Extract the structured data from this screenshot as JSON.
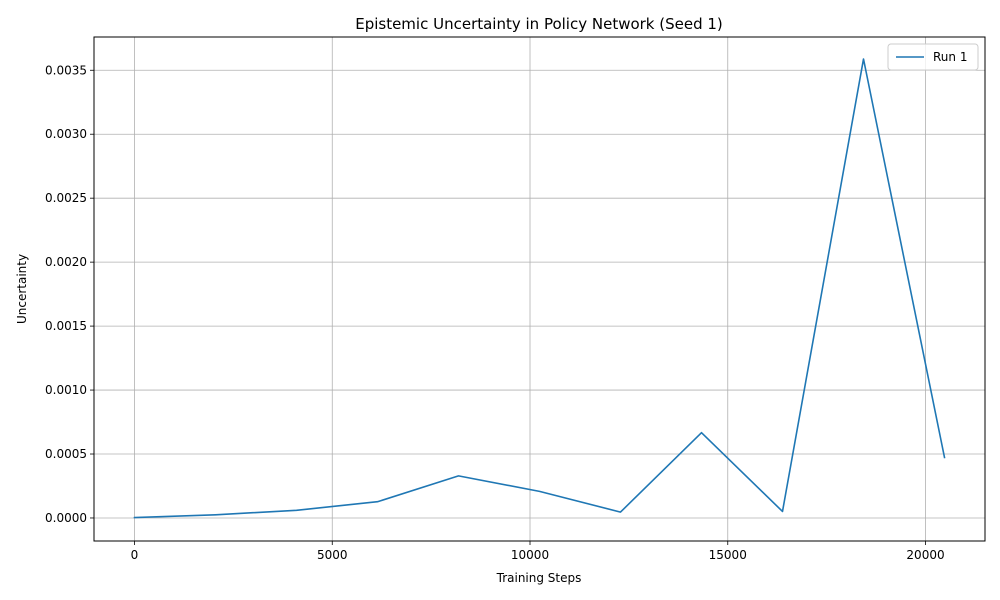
{
  "chart_data": {
    "type": "line",
    "title": "Epistemic Uncertainty in Policy Network (Seed 1)",
    "xlabel": "Training Steps",
    "ylabel": "Uncertainty",
    "xlim": [
      -1024,
      21504
    ],
    "ylim": [
      -0.00018,
      0.00376
    ],
    "xticks": [
      0,
      5000,
      10000,
      15000,
      20000
    ],
    "xtick_labels": [
      "0",
      "5000",
      "10000",
      "15000",
      "20000"
    ],
    "yticks": [
      0.0,
      0.0005,
      0.001,
      0.0015,
      0.002,
      0.0025,
      0.003,
      0.0035
    ],
    "ytick_labels": [
      "0.0000",
      "0.0005",
      "0.0010",
      "0.0015",
      "0.0020",
      "0.0025",
      "0.0030",
      "0.0035"
    ],
    "grid": true,
    "legend": {
      "placement": "top-right",
      "entries": [
        "Run 1"
      ]
    },
    "series": [
      {
        "name": "Run 1",
        "color": "#1f77b4",
        "x": [
          0,
          2048,
          4096,
          6144,
          8192,
          10240,
          12288,
          14336,
          16384,
          18432,
          20480
        ],
        "y": [
          3e-06,
          2.5e-05,
          6e-05,
          0.000127,
          0.000329,
          0.000208,
          4.6e-05,
          0.000667,
          5.1e-05,
          0.003588,
          0.000473
        ]
      }
    ]
  }
}
